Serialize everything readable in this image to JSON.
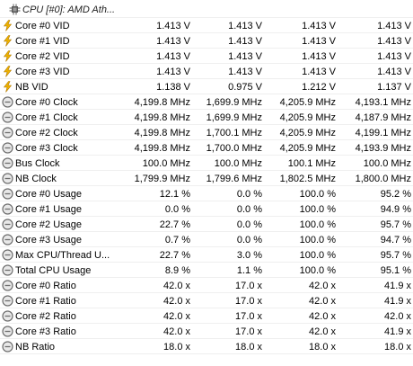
{
  "header": {
    "label": "CPU [#0]: AMD Ath..."
  },
  "rows": [
    {
      "icon": "voltage-bolt-icon",
      "name": "Core #0 VID",
      "values": [
        "1.413 V",
        "1.413 V",
        "1.413 V",
        "1.413 V"
      ]
    },
    {
      "icon": "voltage-bolt-icon",
      "name": "Core #1 VID",
      "values": [
        "1.413 V",
        "1.413 V",
        "1.413 V",
        "1.413 V"
      ]
    },
    {
      "icon": "voltage-bolt-icon",
      "name": "Core #2 VID",
      "values": [
        "1.413 V",
        "1.413 V",
        "1.413 V",
        "1.413 V"
      ]
    },
    {
      "icon": "voltage-bolt-icon",
      "name": "Core #3 VID",
      "values": [
        "1.413 V",
        "1.413 V",
        "1.413 V",
        "1.413 V"
      ]
    },
    {
      "icon": "voltage-bolt-icon",
      "name": "NB VID",
      "values": [
        "1.138 V",
        "0.975 V",
        "1.212 V",
        "1.137 V"
      ]
    },
    {
      "icon": "clock-gauge-icon",
      "name": "Core #0 Clock",
      "values": [
        "4,199.8 MHz",
        "1,699.9 MHz",
        "4,205.9 MHz",
        "4,193.1 MHz"
      ]
    },
    {
      "icon": "clock-gauge-icon",
      "name": "Core #1 Clock",
      "values": [
        "4,199.8 MHz",
        "1,699.9 MHz",
        "4,205.9 MHz",
        "4,187.9 MHz"
      ]
    },
    {
      "icon": "clock-gauge-icon",
      "name": "Core #2 Clock",
      "values": [
        "4,199.8 MHz",
        "1,700.1 MHz",
        "4,205.9 MHz",
        "4,199.1 MHz"
      ]
    },
    {
      "icon": "clock-gauge-icon",
      "name": "Core #3 Clock",
      "values": [
        "4,199.8 MHz",
        "1,700.0 MHz",
        "4,205.9 MHz",
        "4,193.9 MHz"
      ]
    },
    {
      "icon": "clock-gauge-icon",
      "name": "Bus Clock",
      "values": [
        "100.0 MHz",
        "100.0 MHz",
        "100.1 MHz",
        "100.0 MHz"
      ]
    },
    {
      "icon": "clock-gauge-icon",
      "name": "NB Clock",
      "values": [
        "1,799.9 MHz",
        "1,799.6 MHz",
        "1,802.5 MHz",
        "1,800.0 MHz"
      ]
    },
    {
      "icon": "clock-gauge-icon",
      "name": "Core #0 Usage",
      "values": [
        "12.1 %",
        "0.0 %",
        "100.0 %",
        "95.2 %"
      ]
    },
    {
      "icon": "clock-gauge-icon",
      "name": "Core #1 Usage",
      "values": [
        "0.0 %",
        "0.0 %",
        "100.0 %",
        "94.9 %"
      ]
    },
    {
      "icon": "clock-gauge-icon",
      "name": "Core #2 Usage",
      "values": [
        "22.7 %",
        "0.0 %",
        "100.0 %",
        "95.7 %"
      ]
    },
    {
      "icon": "clock-gauge-icon",
      "name": "Core #3 Usage",
      "values": [
        "0.7 %",
        "0.0 %",
        "100.0 %",
        "94.7 %"
      ]
    },
    {
      "icon": "clock-gauge-icon",
      "name": "Max CPU/Thread U...",
      "values": [
        "22.7 %",
        "3.0 %",
        "100.0 %",
        "95.7 %"
      ]
    },
    {
      "icon": "clock-gauge-icon",
      "name": "Total CPU Usage",
      "values": [
        "8.9 %",
        "1.1 %",
        "100.0 %",
        "95.1 %"
      ]
    },
    {
      "icon": "clock-gauge-icon",
      "name": "Core #0 Ratio",
      "values": [
        "42.0 x",
        "17.0 x",
        "42.0 x",
        "41.9 x"
      ]
    },
    {
      "icon": "clock-gauge-icon",
      "name": "Core #1 Ratio",
      "values": [
        "42.0 x",
        "17.0 x",
        "42.0 x",
        "41.9 x"
      ]
    },
    {
      "icon": "clock-gauge-icon",
      "name": "Core #2 Ratio",
      "values": [
        "42.0 x",
        "17.0 x",
        "42.0 x",
        "42.0 x"
      ]
    },
    {
      "icon": "clock-gauge-icon",
      "name": "Core #3 Ratio",
      "values": [
        "42.0 x",
        "17.0 x",
        "42.0 x",
        "41.9 x"
      ]
    },
    {
      "icon": "clock-gauge-icon",
      "name": "NB Ratio",
      "values": [
        "18.0 x",
        "18.0 x",
        "18.0 x",
        "18.0 x"
      ]
    }
  ],
  "colors": {
    "voltage_icon": "#f0b400",
    "voltage_icon_edge": "#b07800",
    "clock_icon": "#6e6e6e",
    "clock_icon_face": "#e8e8e8",
    "chip_icon": "#5a5a5a"
  }
}
